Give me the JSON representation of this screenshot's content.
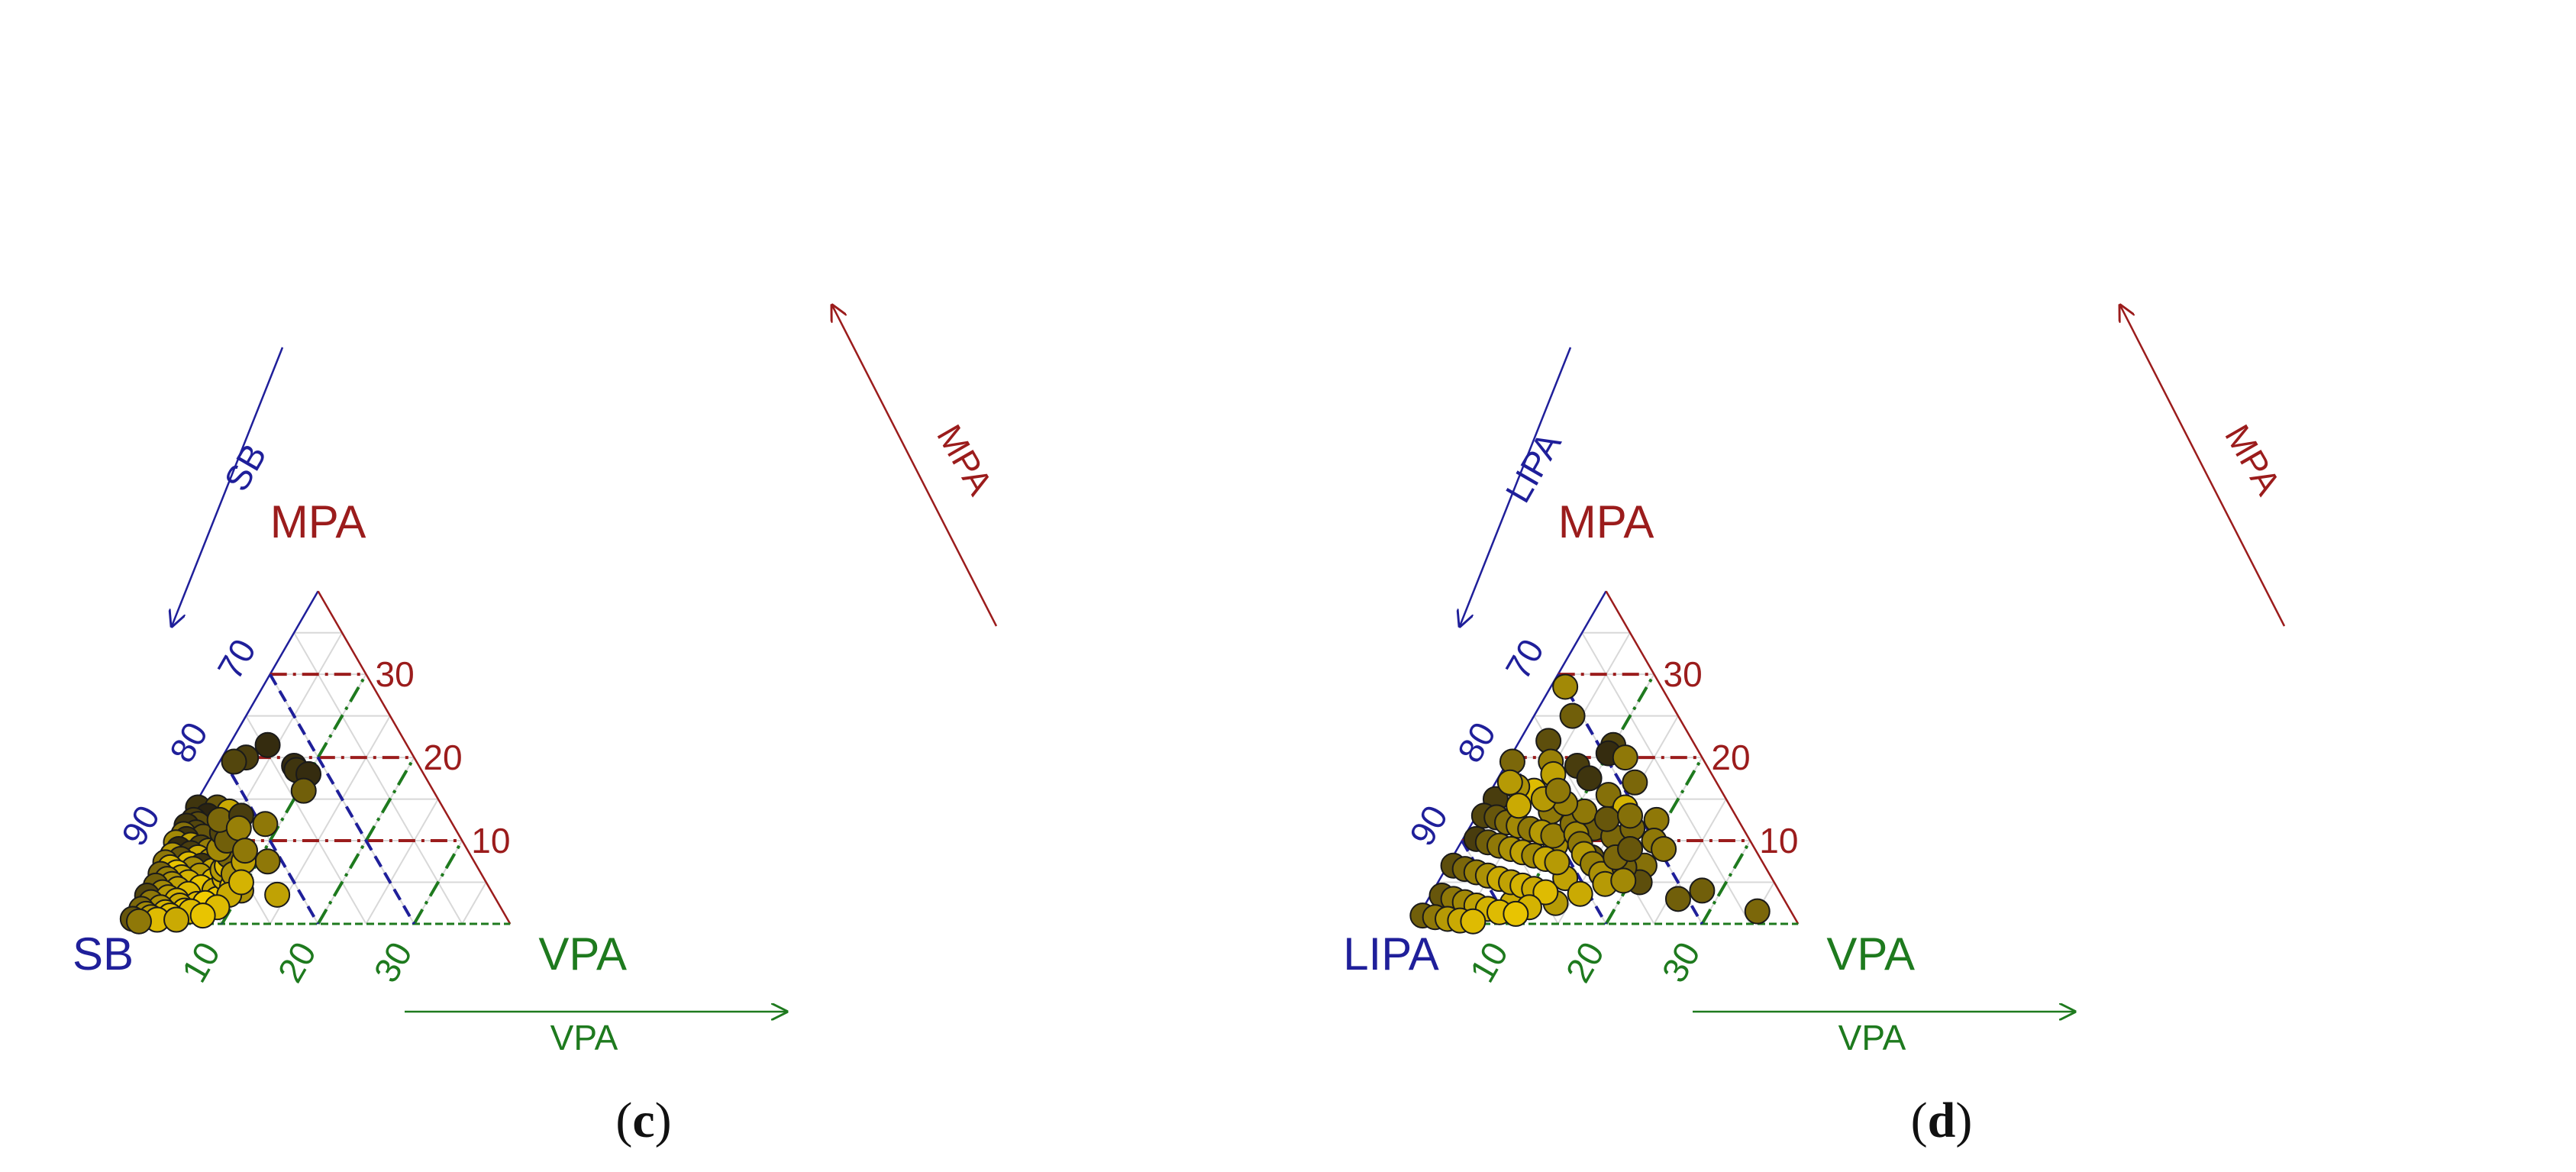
{
  "chart_data": [
    {
      "type": "scatter",
      "subtype": "ternary",
      "panel_label": "c",
      "vertices": {
        "top": "MPA",
        "left": "SB",
        "right": "VPA"
      },
      "axis_arrows": {
        "left": "SB",
        "right": "MPA",
        "bottom": "VPA"
      },
      "axis_range_percent": {
        "MPA": [
          0,
          40
        ],
        "VPA": [
          0,
          40
        ],
        "SB": [
          60,
          100
        ]
      },
      "ticks": {
        "left": [
          "70",
          "80",
          "90"
        ],
        "right": [
          "30",
          "20",
          "10"
        ],
        "bottom": [
          "10",
          "20",
          "30"
        ]
      },
      "reference_lines": {
        "MPA": [
          10,
          20,
          30
        ],
        "VPA": [
          10,
          20,
          30
        ],
        "SB": [
          70,
          80,
          90
        ]
      },
      "grid": true,
      "colors": {
        "MPA": "#9b1c1c",
        "SB": "#1f1f9a",
        "VPA": "#1e7a1e",
        "point_dark": "#2b2410",
        "point_light": "#f2cc00",
        "grid": "#d8d8d8"
      },
      "points": [
        {
          "mpa": 21.5,
          "vpa": 4.0,
          "shade": 0.05
        },
        {
          "mpa": 20.0,
          "vpa": 2.5,
          "shade": 0.15
        },
        {
          "mpa": 19.5,
          "vpa": 1.5,
          "shade": 0.2
        },
        {
          "mpa": 19.0,
          "vpa": 8.0,
          "shade": 0.05
        },
        {
          "mpa": 18.5,
          "vpa": 8.5,
          "shade": 0.1
        },
        {
          "mpa": 18.0,
          "vpa": 10.0,
          "shade": 0.05
        },
        {
          "mpa": 16.0,
          "vpa": 10.5,
          "shade": 0.35
        },
        {
          "mpa": 14.0,
          "vpa": 0.5,
          "shade": 0.1
        },
        {
          "mpa": 14.0,
          "vpa": 2.5,
          "shade": 0.3
        },
        {
          "mpa": 13.5,
          "vpa": 4.0,
          "shade": 0.8
        },
        {
          "mpa": 13.0,
          "vpa": 2.0,
          "shade": 0.0
        },
        {
          "mpa": 12.0,
          "vpa": 8.5,
          "shade": 0.5
        },
        {
          "mpa": 11.5,
          "vpa": 2.5,
          "shade": 0.4
        },
        {
          "mpa": 10.0,
          "vpa": 4.0,
          "shade": 0.85
        },
        {
          "mpa": 9.5,
          "vpa": 6.5,
          "shade": 0.95
        },
        {
          "mpa": 8.0,
          "vpa": 6.0,
          "shade": 0.85
        },
        {
          "mpa": 7.5,
          "vpa": 11.0,
          "shade": 0.5
        },
        {
          "mpa": 4.0,
          "vpa": 10.0,
          "shade": 0.65
        },
        {
          "mpa": 4.0,
          "vpa": 8.5,
          "shade": 0.6
        },
        {
          "mpa": 3.5,
          "vpa": 14.0,
          "shade": 0.75
        },
        {
          "mpa": 3.0,
          "vpa": 6.0,
          "shade": 0.75
        },
        {
          "mpa": 12.5,
          "vpa": 0.8,
          "shade": 0.15
        },
        {
          "mpa": 12.0,
          "vpa": 1.5,
          "shade": 0.25
        },
        {
          "mpa": 11.8,
          "vpa": 0.4,
          "shade": 0.1
        },
        {
          "mpa": 11.0,
          "vpa": 1.8,
          "shade": 0.2
        },
        {
          "mpa": 10.8,
          "vpa": 0.6,
          "shade": 0.45
        },
        {
          "mpa": 10.5,
          "vpa": 2.8,
          "shade": 0.3
        },
        {
          "mpa": 10.2,
          "vpa": 1.2,
          "shade": 0.1
        },
        {
          "mpa": 9.8,
          "vpa": 0.3,
          "shade": 0.6
        },
        {
          "mpa": 9.5,
          "vpa": 2.0,
          "shade": 0.75
        },
        {
          "mpa": 9.2,
          "vpa": 3.2,
          "shade": 0.2
        },
        {
          "mpa": 9.0,
          "vpa": 1.0,
          "shade": 0.05
        },
        {
          "mpa": 8.8,
          "vpa": 4.2,
          "shade": 0.55
        },
        {
          "mpa": 8.5,
          "vpa": 2.5,
          "shade": 0.15
        },
        {
          "mpa": 8.3,
          "vpa": 0.7,
          "shade": 0.7
        },
        {
          "mpa": 8.0,
          "vpa": 3.5,
          "shade": 0.8
        },
        {
          "mpa": 7.8,
          "vpa": 1.8,
          "shade": 0.3
        },
        {
          "mpa": 7.6,
          "vpa": 5.0,
          "shade": 0.65
        },
        {
          "mpa": 7.4,
          "vpa": 0.4,
          "shade": 0.5
        },
        {
          "mpa": 7.2,
          "vpa": 2.9,
          "shade": 0.9
        },
        {
          "mpa": 7.0,
          "vpa": 4.4,
          "shade": 0.1
        },
        {
          "mpa": 6.8,
          "vpa": 1.2,
          "shade": 0.85
        },
        {
          "mpa": 6.6,
          "vpa": 3.7,
          "shade": 0.6
        },
        {
          "mpa": 6.4,
          "vpa": 5.8,
          "shade": 0.75
        },
        {
          "mpa": 6.2,
          "vpa": 2.2,
          "shade": 0.95
        },
        {
          "mpa": 6.0,
          "vpa": 0.6,
          "shade": 0.4
        },
        {
          "mpa": 5.8,
          "vpa": 4.8,
          "shade": 0.7
        },
        {
          "mpa": 5.6,
          "vpa": 3.0,
          "shade": 0.8
        },
        {
          "mpa": 5.4,
          "vpa": 1.6,
          "shade": 0.55
        },
        {
          "mpa": 5.2,
          "vpa": 6.5,
          "shade": 0.9
        },
        {
          "mpa": 5.0,
          "vpa": 4.0,
          "shade": 0.85
        },
        {
          "mpa": 4.8,
          "vpa": 2.4,
          "shade": 0.65
        },
        {
          "mpa": 4.6,
          "vpa": 0.8,
          "shade": 0.35
        },
        {
          "mpa": 4.4,
          "vpa": 5.6,
          "shade": 0.95
        },
        {
          "mpa": 4.2,
          "vpa": 3.3,
          "shade": 0.75
        },
        {
          "mpa": 4.0,
          "vpa": 7.2,
          "shade": 0.8
        },
        {
          "mpa": 3.8,
          "vpa": 1.9,
          "shade": 0.6
        },
        {
          "mpa": 3.6,
          "vpa": 4.7,
          "shade": 0.9
        },
        {
          "mpa": 3.4,
          "vpa": 0.5,
          "shade": 0.2
        },
        {
          "mpa": 3.2,
          "vpa": 2.8,
          "shade": 0.7
        },
        {
          "mpa": 3.0,
          "vpa": 8.0,
          "shade": 0.95
        },
        {
          "mpa": 2.8,
          "vpa": 3.9,
          "shade": 0.85
        },
        {
          "mpa": 2.6,
          "vpa": 1.3,
          "shade": 0.5
        },
        {
          "mpa": 2.4,
          "vpa": 6.2,
          "shade": 0.9
        },
        {
          "mpa": 2.2,
          "vpa": 4.5,
          "shade": 0.8
        },
        {
          "mpa": 2.0,
          "vpa": 2.6,
          "shade": 0.65
        },
        {
          "mpa": 1.8,
          "vpa": 0.7,
          "shade": 0.4
        },
        {
          "mpa": 1.6,
          "vpa": 5.3,
          "shade": 0.95
        },
        {
          "mpa": 1.4,
          "vpa": 3.4,
          "shade": 0.85
        },
        {
          "mpa": 1.2,
          "vpa": 1.5,
          "shade": 0.6
        },
        {
          "mpa": 1.0,
          "vpa": 4.1,
          "shade": 0.9
        },
        {
          "mpa": 0.8,
          "vpa": 2.2,
          "shade": 0.7
        },
        {
          "mpa": 0.6,
          "vpa": 0.4,
          "shade": 0.3
        },
        {
          "mpa": 0.5,
          "vpa": 3.0,
          "shade": 0.9
        },
        {
          "mpa": 0.3,
          "vpa": 1.2,
          "shade": 0.5
        },
        {
          "mpa": 5.5,
          "vpa": 7.5,
          "shade": 0.85
        },
        {
          "mpa": 6.5,
          "vpa": 6.8,
          "shade": 0.7
        },
        {
          "mpa": 7.0,
          "vpa": 7.0,
          "shade": 0.9
        },
        {
          "mpa": 8.2,
          "vpa": 6.6,
          "shade": 0.4
        },
        {
          "mpa": 4.5,
          "vpa": 8.8,
          "shade": 0.95
        },
        {
          "mpa": 2.5,
          "vpa": 7.0,
          "shade": 1.0
        },
        {
          "mpa": 1.5,
          "vpa": 6.0,
          "shade": 0.9
        },
        {
          "mpa": 9.0,
          "vpa": 5.2,
          "shade": 0.6
        },
        {
          "mpa": 11.0,
          "vpa": 4.5,
          "shade": 0.2
        },
        {
          "mpa": 10.0,
          "vpa": 5.5,
          "shade": 0.35
        },
        {
          "mpa": 6.0,
          "vpa": 8.2,
          "shade": 0.65
        },
        {
          "mpa": 3.5,
          "vpa": 9.0,
          "shade": 0.8
        },
        {
          "mpa": 2.0,
          "vpa": 8.5,
          "shade": 0.9
        },
        {
          "mpa": 12.5,
          "vpa": 3.5,
          "shade": 0.4
        },
        {
          "mpa": 13.0,
          "vpa": 5.5,
          "shade": 0.15
        },
        {
          "mpa": 11.5,
          "vpa": 6.0,
          "shade": 0.55
        },
        {
          "mpa": 7.5,
          "vpa": 8.5,
          "shade": 0.75
        },
        {
          "mpa": 5.0,
          "vpa": 9.5,
          "shade": 0.85
        },
        {
          "mpa": 1.0,
          "vpa": 7.5,
          "shade": 0.95
        },
        {
          "mpa": 0.5,
          "vpa": 5.0,
          "shade": 0.8
        },
        {
          "mpa": 8.8,
          "vpa": 8.0,
          "shade": 0.5
        }
      ]
    },
    {
      "type": "scatter",
      "subtype": "ternary",
      "panel_label": "d",
      "vertices": {
        "top": "MPA",
        "left": "LIPA",
        "right": "VPA"
      },
      "axis_arrows": {
        "left": "LIPA",
        "right": "MPA",
        "bottom": "VPA"
      },
      "axis_range_percent": {
        "MPA": [
          0,
          40
        ],
        "VPA": [
          0,
          40
        ],
        "LIPA": [
          60,
          100
        ]
      },
      "ticks": {
        "left": [
          "70",
          "80",
          "90"
        ],
        "right": [
          "30",
          "20",
          "10"
        ],
        "bottom": [
          "10",
          "20",
          "30"
        ]
      },
      "reference_lines": {
        "MPA": [
          10,
          20,
          30
        ],
        "VPA": [
          10,
          20,
          30
        ],
        "LIPA": [
          70,
          80,
          90
        ]
      },
      "grid": true,
      "colors": {
        "MPA": "#9b1c1c",
        "LIPA": "#1f1f9a",
        "VPA": "#1e7a1e",
        "point_dark": "#2b2410",
        "point_light": "#f2cc00",
        "grid": "#d8d8d8"
      },
      "points": [
        {
          "mpa": 28.5,
          "vpa": 1.5,
          "shade": 0.6
        },
        {
          "mpa": 25.0,
          "vpa": 4.0,
          "shade": 0.35
        },
        {
          "mpa": 22.0,
          "vpa": 3.0,
          "shade": 0.25
        },
        {
          "mpa": 21.5,
          "vpa": 10.0,
          "shade": 0.2
        },
        {
          "mpa": 20.5,
          "vpa": 10.0,
          "shade": 0.05
        },
        {
          "mpa": 20.0,
          "vpa": 12.0,
          "shade": 0.5
        },
        {
          "mpa": 19.5,
          "vpa": 0.5,
          "shade": 0.4
        },
        {
          "mpa": 19.5,
          "vpa": 4.5,
          "shade": 0.55
        },
        {
          "mpa": 19.0,
          "vpa": 7.5,
          "shade": 0.15
        },
        {
          "mpa": 18.0,
          "vpa": 5.5,
          "shade": 0.75
        },
        {
          "mpa": 17.5,
          "vpa": 9.5,
          "shade": 0.1
        },
        {
          "mpa": 17.0,
          "vpa": 14.5,
          "shade": 0.4
        },
        {
          "mpa": 16.0,
          "vpa": 4.5,
          "shade": 0.9
        },
        {
          "mpa": 15.5,
          "vpa": 12.5,
          "shade": 0.45
        },
        {
          "mpa": 15.0,
          "vpa": 1.0,
          "shade": 0.15
        },
        {
          "mpa": 14.0,
          "vpa": 15.0,
          "shade": 0.85
        },
        {
          "mpa": 13.5,
          "vpa": 7.5,
          "shade": 0.5
        },
        {
          "mpa": 12.5,
          "vpa": 19.0,
          "shade": 0.5
        },
        {
          "mpa": 11.5,
          "vpa": 13.0,
          "shade": 0.35
        },
        {
          "mpa": 10.5,
          "vpa": 15.5,
          "shade": 0.4
        },
        {
          "mpa": 10.0,
          "vpa": 20.0,
          "shade": 0.5
        },
        {
          "mpa": 9.5,
          "vpa": 10.0,
          "shade": 0.65
        },
        {
          "mpa": 9.0,
          "vpa": 21.5,
          "shade": 0.5
        },
        {
          "mpa": 8.0,
          "vpa": 14.5,
          "shade": 0.3
        },
        {
          "mpa": 7.0,
          "vpa": 20.5,
          "shade": 0.45
        },
        {
          "mpa": 5.5,
          "vpa": 13.0,
          "shade": 0.75
        },
        {
          "mpa": 5.0,
          "vpa": 21.0,
          "shade": 0.25
        },
        {
          "mpa": 4.0,
          "vpa": 28.0,
          "shade": 0.35
        },
        {
          "mpa": 3.0,
          "vpa": 26.0,
          "shade": 0.35
        },
        {
          "mpa": 2.5,
          "vpa": 13.5,
          "shade": 0.7
        },
        {
          "mpa": 1.5,
          "vpa": 35.0,
          "shade": 0.4
        },
        {
          "mpa": 1.5,
          "vpa": 3.0,
          "shade": 0.0
        },
        {
          "mpa": 2.5,
          "vpa": 9.0,
          "shade": 0.8
        },
        {
          "mpa": 13.0,
          "vpa": 0.8,
          "shade": 0.2
        },
        {
          "mpa": 12.8,
          "vpa": 2.2,
          "shade": 0.3
        },
        {
          "mpa": 12.2,
          "vpa": 3.6,
          "shade": 0.45
        },
        {
          "mpa": 11.8,
          "vpa": 5.0,
          "shade": 0.6
        },
        {
          "mpa": 11.4,
          "vpa": 6.4,
          "shade": 0.5
        },
        {
          "mpa": 11.0,
          "vpa": 7.8,
          "shade": 0.7
        },
        {
          "mpa": 10.6,
          "vpa": 9.2,
          "shade": 0.55
        },
        {
          "mpa": 10.2,
          "vpa": 1.4,
          "shade": 0.15
        },
        {
          "mpa": 9.8,
          "vpa": 2.8,
          "shade": 0.35
        },
        {
          "mpa": 9.4,
          "vpa": 4.2,
          "shade": 0.5
        },
        {
          "mpa": 9.0,
          "vpa": 5.6,
          "shade": 0.65
        },
        {
          "mpa": 8.6,
          "vpa": 7.0,
          "shade": 0.75
        },
        {
          "mpa": 8.2,
          "vpa": 8.4,
          "shade": 0.6
        },
        {
          "mpa": 7.8,
          "vpa": 9.8,
          "shade": 0.8
        },
        {
          "mpa": 7.4,
          "vpa": 11.2,
          "shade": 0.7
        },
        {
          "mpa": 7.0,
          "vpa": 0.6,
          "shade": 0.25
        },
        {
          "mpa": 6.6,
          "vpa": 2.0,
          "shade": 0.4
        },
        {
          "mpa": 6.2,
          "vpa": 3.4,
          "shade": 0.55
        },
        {
          "mpa": 5.8,
          "vpa": 4.8,
          "shade": 0.65
        },
        {
          "mpa": 5.4,
          "vpa": 6.2,
          "shade": 0.8
        },
        {
          "mpa": 5.0,
          "vpa": 7.6,
          "shade": 0.75
        },
        {
          "mpa": 4.6,
          "vpa": 9.0,
          "shade": 0.85
        },
        {
          "mpa": 4.2,
          "vpa": 10.4,
          "shade": 0.8
        },
        {
          "mpa": 3.8,
          "vpa": 11.8,
          "shade": 0.9
        },
        {
          "mpa": 3.4,
          "vpa": 1.2,
          "shade": 0.3
        },
        {
          "mpa": 3.0,
          "vpa": 2.6,
          "shade": 0.5
        },
        {
          "mpa": 2.6,
          "vpa": 4.0,
          "shade": 0.6
        },
        {
          "mpa": 2.2,
          "vpa": 5.4,
          "shade": 0.75
        },
        {
          "mpa": 1.8,
          "vpa": 6.8,
          "shade": 0.85
        },
        {
          "mpa": 1.4,
          "vpa": 8.2,
          "shade": 0.9
        },
        {
          "mpa": 1.0,
          "vpa": 0.4,
          "shade": 0.35
        },
        {
          "mpa": 0.8,
          "vpa": 1.8,
          "shade": 0.5
        },
        {
          "mpa": 0.6,
          "vpa": 3.2,
          "shade": 0.7
        },
        {
          "mpa": 0.4,
          "vpa": 4.6,
          "shade": 0.8
        },
        {
          "mpa": 0.3,
          "vpa": 6.0,
          "shade": 0.9
        },
        {
          "mpa": 12.0,
          "vpa": 10.5,
          "shade": 0.45
        },
        {
          "mpa": 10.8,
          "vpa": 11.5,
          "shade": 0.6
        },
        {
          "mpa": 9.6,
          "vpa": 12.5,
          "shade": 0.5
        },
        {
          "mpa": 8.4,
          "vpa": 13.5,
          "shade": 0.7
        },
        {
          "mpa": 7.2,
          "vpa": 15.0,
          "shade": 0.55
        },
        {
          "mpa": 6.0,
          "vpa": 16.5,
          "shade": 0.65
        },
        {
          "mpa": 4.8,
          "vpa": 17.5,
          "shade": 0.7
        },
        {
          "mpa": 3.6,
          "vpa": 15.5,
          "shade": 0.8
        },
        {
          "mpa": 11.5,
          "vpa": 17.0,
          "shade": 0.4
        },
        {
          "mpa": 13.5,
          "vpa": 11.0,
          "shade": 0.5
        },
        {
          "mpa": 14.5,
          "vpa": 8.5,
          "shade": 0.55
        },
        {
          "mpa": 15.0,
          "vpa": 6.0,
          "shade": 0.7
        },
        {
          "mpa": 16.5,
          "vpa": 2.5,
          "shade": 0.65
        },
        {
          "mpa": 14.2,
          "vpa": 3.8,
          "shade": 0.8
        },
        {
          "mpa": 12.6,
          "vpa": 13.8,
          "shade": 0.3
        },
        {
          "mpa": 6.8,
          "vpa": 18.5,
          "shade": 0.35
        },
        {
          "mpa": 5.2,
          "vpa": 19.2,
          "shade": 0.6
        },
        {
          "mpa": 2.0,
          "vpa": 11.0,
          "shade": 0.85
        },
        {
          "mpa": 8.0,
          "vpa": 17.0,
          "shade": 0.4
        },
        {
          "mpa": 17.0,
          "vpa": 1.5,
          "shade": 0.7
        },
        {
          "mpa": 16.0,
          "vpa": 7.0,
          "shade": 0.5
        },
        {
          "mpa": 13.0,
          "vpa": 16.0,
          "shade": 0.45
        },
        {
          "mpa": 9.0,
          "vpa": 18.0,
          "shade": 0.3
        },
        {
          "mpa": 1.2,
          "vpa": 10.0,
          "shade": 0.95
        }
      ]
    }
  ],
  "captions": [
    "c",
    "d"
  ]
}
